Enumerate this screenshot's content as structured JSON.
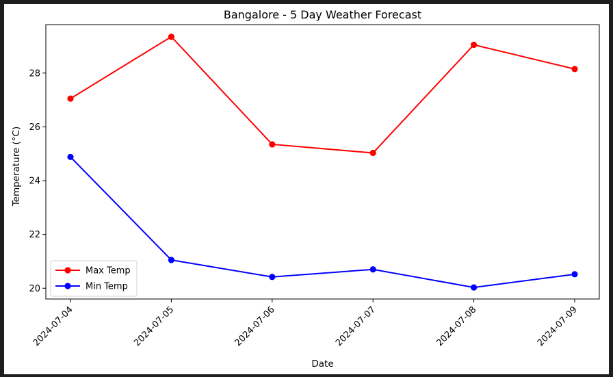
{
  "chart_data": {
    "type": "line",
    "title": "Bangalore - 5 Day Weather Forecast",
    "xlabel": "Date",
    "ylabel": "Temperature (°C)",
    "categories": [
      "2024-07-04",
      "2024-07-05",
      "2024-07-06",
      "2024-07-07",
      "2024-07-08",
      "2024-07-09"
    ],
    "series": [
      {
        "name": "Max Temp",
        "color": "#ff0000",
        "marker": "circle",
        "values": [
          27.05,
          29.35,
          25.35,
          25.03,
          29.05,
          28.15
        ]
      },
      {
        "name": "Min Temp",
        "color": "#0000ff",
        "marker": "circle",
        "values": [
          24.88,
          21.05,
          20.42,
          20.7,
          20.03,
          20.52
        ]
      }
    ],
    "ylim": [
      19.6,
      29.8
    ],
    "yticks": [
      20,
      22,
      24,
      26,
      28
    ],
    "grid": false,
    "legend_position": "lower-left"
  }
}
